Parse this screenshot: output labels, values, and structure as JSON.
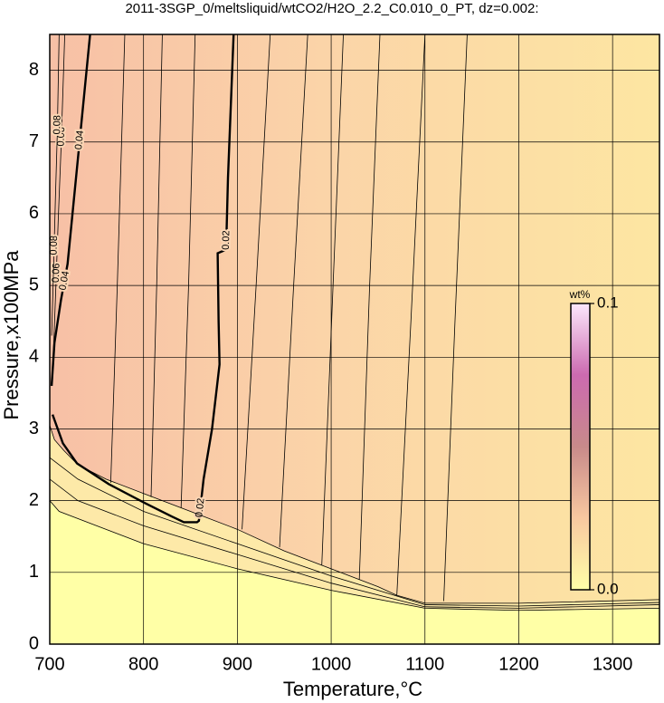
{
  "chart_data": {
    "type": "contour",
    "title": "2011-3SGP_0/meltsliquid/wtCO2/H2O_2.2_C0.010_0_PT, dz=0.002:",
    "x_label": "Temperature,°C",
    "y_label": "Pressure,x100MPa",
    "xlim": [
      700,
      1350
    ],
    "ylim": [
      0,
      8.5
    ],
    "xticks": [
      700,
      800,
      900,
      1000,
      1100,
      1200,
      1300
    ],
    "yticks": [
      0,
      1,
      2,
      3,
      4,
      5,
      6,
      7,
      8
    ],
    "grid": true,
    "contour_color": "#000000",
    "series": [
      {
        "name": "0.02",
        "bold": true,
        "x": [
          896,
          890,
          888,
          879,
          880,
          881,
          873,
          864,
          859,
          857,
          843,
          830,
          801,
          763,
          729,
          714,
          703
        ],
        "values": [
          8.5,
          6.5,
          5.5,
          5.45,
          4.5,
          3.9,
          3.0,
          2.3,
          1.72,
          1.7,
          1.7,
          1.78,
          1.97,
          2.23,
          2.52,
          2.8,
          3.2
        ]
      },
      {
        "name": "0.04",
        "bold": true,
        "x": [
          702,
          705,
          712,
          719,
          725,
          731,
          737,
          743
        ],
        "values": [
          3.6,
          4.2,
          4.8,
          5.3,
          6.1,
          6.9,
          7.7,
          8.5
        ]
      },
      {
        "name": "0.06",
        "bold": false,
        "x": [
          703,
          706,
          709,
          712,
          714,
          716
        ],
        "values": [
          3.75,
          4.8,
          5.9,
          6.9,
          7.7,
          8.5
        ]
      },
      {
        "name": "0.08",
        "bold": false,
        "x": [
          702,
          704,
          706,
          708,
          709,
          710
        ],
        "values": [
          4.3,
          5.2,
          6.2,
          7.1,
          7.8,
          8.5
        ]
      },
      {
        "bold": false,
        "fill": "#fde9a8",
        "x": [
          700,
          705,
          715,
          730,
          760,
          800,
          850,
          900,
          950,
          1000,
          1050,
          1070,
          1100,
          1200,
          1350
        ],
        "values": [
          3.05,
          2.85,
          2.7,
          2.5,
          2.3,
          2.1,
          1.85,
          1.6,
          1.3,
          1.05,
          0.8,
          0.68,
          0.57,
          0.57,
          0.62
        ]
      },
      {
        "bold": false,
        "x": [
          700,
          730,
          800,
          900,
          1000,
          1100,
          1200,
          1350
        ],
        "values": [
          2.6,
          2.3,
          1.85,
          1.4,
          0.95,
          0.55,
          0.53,
          0.58
        ]
      },
      {
        "bold": false,
        "x": [
          700,
          730,
          800,
          900,
          1000,
          1100,
          1200,
          1350
        ],
        "values": [
          2.3,
          2.0,
          1.65,
          1.25,
          0.85,
          0.52,
          0.5,
          0.55
        ]
      },
      {
        "bold": false,
        "fill": "#ffffa6",
        "x": [
          700,
          710,
          750,
          800,
          900,
          1000,
          1100,
          1200,
          1350
        ],
        "values": [
          2.0,
          1.85,
          1.65,
          1.4,
          1.05,
          0.75,
          0.5,
          0.47,
          0.5
        ]
      },
      {
        "bold": false,
        "x": [
          780,
          772,
          765
        ],
        "values": [
          8.5,
          5.0,
          2.25
        ]
      },
      {
        "bold": false,
        "x": [
          820,
          814,
          808
        ],
        "values": [
          8.5,
          5.0,
          2.05
        ]
      },
      {
        "bold": false,
        "x": [
          855,
          848,
          840
        ],
        "values": [
          8.5,
          5.0,
          1.9
        ]
      },
      {
        "bold": false,
        "x": [
          935,
          920,
          905
        ],
        "values": [
          8.5,
          5.0,
          1.6
        ]
      },
      {
        "bold": false,
        "x": [
          975,
          960,
          945
        ],
        "values": [
          8.5,
          5.0,
          1.35
        ]
      },
      {
        "bold": false,
        "x": [
          1013,
          1002,
          990
        ],
        "values": [
          8.5,
          5.0,
          1.1
        ]
      },
      {
        "bold": false,
        "x": [
          1052,
          1041,
          1030
        ],
        "values": [
          8.5,
          5.0,
          0.9
        ]
      },
      {
        "bold": false,
        "x": [
          1100,
          1085,
          1070
        ],
        "values": [
          8.5,
          4.5,
          0.68
        ]
      },
      {
        "bold": false,
        "x": [
          1145,
          1132,
          1120
        ],
        "values": [
          8.5,
          4.5,
          0.6
        ]
      }
    ],
    "colorbar": {
      "label": "wt%",
      "lim": [
        0,
        0.1
      ],
      "ticks": [
        0.1,
        {
          "value": 0,
          "label": "0.0"
        }
      ],
      "colors": [
        "#ffffa8",
        "#f8c8a0",
        "#c88a8a",
        "#cc6ab0",
        "#fce8fc"
      ]
    }
  }
}
